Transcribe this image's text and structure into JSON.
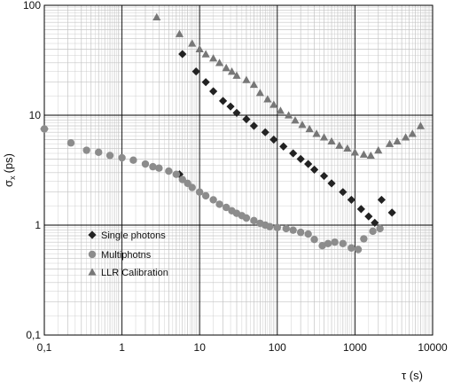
{
  "chart_data": {
    "type": "scatter",
    "title": "",
    "xlabel": "τ (s)",
    "ylabel_symbol": "σ",
    "ylabel_sub": "x",
    "ylabel_unit": "(ps)",
    "x_scale": "log",
    "y_scale": "log",
    "xlim": [
      0.1,
      10000
    ],
    "ylim": [
      0.1,
      100
    ],
    "grid": true,
    "x_ticks": [
      0.1,
      1,
      10,
      100,
      1000,
      10000
    ],
    "x_tick_labels": [
      "0,1",
      "1",
      "10",
      "100",
      "1000",
      "10000"
    ],
    "y_ticks": [
      0.1,
      1,
      10,
      100
    ],
    "y_tick_labels": [
      "0,1",
      "1",
      "10",
      "100"
    ],
    "legend_position": "lower-left",
    "series": [
      {
        "name": "Single photons",
        "marker": "diamond",
        "color": "#222222",
        "points": [
          [
            0.1,
            7.5
          ],
          [
            5.5,
            2.9
          ],
          [
            6,
            36
          ],
          [
            9,
            25
          ],
          [
            12,
            20
          ],
          [
            15,
            16.5
          ],
          [
            20,
            13.5
          ],
          [
            25,
            12
          ],
          [
            30,
            10.5
          ],
          [
            40,
            9.2
          ],
          [
            50,
            8
          ],
          [
            70,
            7
          ],
          [
            90,
            6
          ],
          [
            120,
            5.2
          ],
          [
            160,
            4.5
          ],
          [
            200,
            4
          ],
          [
            250,
            3.6
          ],
          [
            300,
            3.2
          ],
          [
            400,
            2.8
          ],
          [
            500,
            2.4
          ],
          [
            700,
            2
          ],
          [
            900,
            1.7
          ],
          [
            1200,
            1.4
          ],
          [
            1500,
            1.2
          ],
          [
            1800,
            1.05
          ],
          [
            2200,
            1.7
          ],
          [
            3000,
            1.3
          ]
        ]
      },
      {
        "name": "Multiphotns",
        "marker": "circle",
        "color": "#8c8c8c",
        "points": [
          [
            0.1,
            7.5
          ],
          [
            0.22,
            5.6
          ],
          [
            0.35,
            4.8
          ],
          [
            0.5,
            4.6
          ],
          [
            0.7,
            4.3
          ],
          [
            1,
            4.1
          ],
          [
            1.4,
            3.9
          ],
          [
            2,
            3.6
          ],
          [
            2.5,
            3.4
          ],
          [
            3,
            3.3
          ],
          [
            4,
            3.1
          ],
          [
            5,
            2.9
          ],
          [
            6,
            2.6
          ],
          [
            7,
            2.4
          ],
          [
            8,
            2.2
          ],
          [
            10,
            2.0
          ],
          [
            12,
            1.85
          ],
          [
            15,
            1.7
          ],
          [
            18,
            1.55
          ],
          [
            22,
            1.45
          ],
          [
            26,
            1.35
          ],
          [
            30,
            1.28
          ],
          [
            35,
            1.22
          ],
          [
            40,
            1.16
          ],
          [
            50,
            1.1
          ],
          [
            60,
            1.04
          ],
          [
            70,
            1.0
          ],
          [
            80,
            0.97
          ],
          [
            100,
            0.95
          ],
          [
            130,
            0.93
          ],
          [
            160,
            0.9
          ],
          [
            200,
            0.86
          ],
          [
            250,
            0.83
          ],
          [
            300,
            0.74
          ],
          [
            380,
            0.65
          ],
          [
            450,
            0.68
          ],
          [
            550,
            0.7
          ],
          [
            700,
            0.68
          ],
          [
            900,
            0.62
          ],
          [
            1100,
            0.6
          ],
          [
            1300,
            0.75
          ],
          [
            1700,
            0.88
          ],
          [
            2100,
            0.93
          ]
        ]
      },
      {
        "name": "LLR Calibration",
        "marker": "triangle",
        "color": "#777777",
        "points": [
          [
            2.8,
            78
          ],
          [
            5.5,
            55
          ],
          [
            8,
            45
          ],
          [
            10,
            40
          ],
          [
            12,
            36
          ],
          [
            15,
            33
          ],
          [
            18,
            30
          ],
          [
            22,
            27
          ],
          [
            26,
            25
          ],
          [
            30,
            23
          ],
          [
            40,
            21
          ],
          [
            50,
            19
          ],
          [
            60,
            16
          ],
          [
            75,
            14
          ],
          [
            90,
            12.5
          ],
          [
            110,
            11
          ],
          [
            140,
            10
          ],
          [
            170,
            9
          ],
          [
            210,
            8.2
          ],
          [
            260,
            7.5
          ],
          [
            320,
            6.8
          ],
          [
            400,
            6.3
          ],
          [
            500,
            5.8
          ],
          [
            630,
            5.3
          ],
          [
            800,
            5
          ],
          [
            1000,
            4.6
          ],
          [
            1300,
            4.4
          ],
          [
            1600,
            4.3
          ],
          [
            2000,
            4.8
          ],
          [
            2800,
            5.5
          ],
          [
            3500,
            5.8
          ],
          [
            4500,
            6.3
          ],
          [
            5500,
            6.8
          ],
          [
            7000,
            8
          ]
        ]
      }
    ]
  }
}
